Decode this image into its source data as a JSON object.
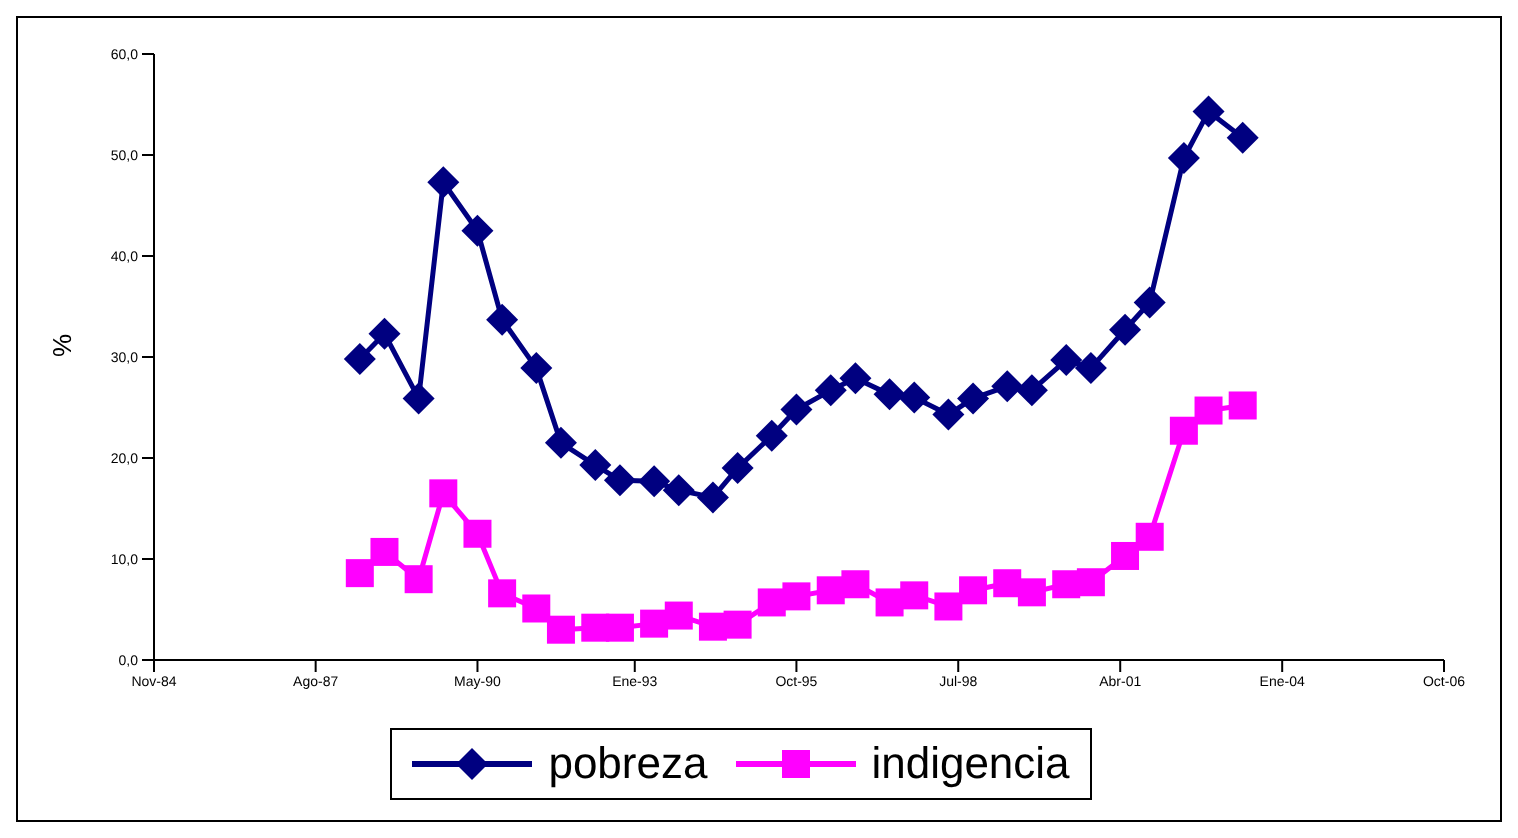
{
  "chart_data": {
    "type": "line",
    "ylabel": "%",
    "x": [
      "1988-05",
      "1988-10",
      "1989-05",
      "1989-10",
      "1990-05",
      "1990-10",
      "1991-05",
      "1991-10",
      "1992-05",
      "1992-10",
      "1993-05",
      "1993-10",
      "1994-05",
      "1994-10",
      "1995-05",
      "1995-10",
      "1996-05",
      "1996-10",
      "1997-05",
      "1997-10",
      "1998-05",
      "1998-10",
      "1999-05",
      "1999-10",
      "2000-05",
      "2000-10",
      "2001-05",
      "2001-10",
      "2002-05",
      "2002-10",
      "2003-05"
    ],
    "series": [
      {
        "name": "pobreza",
        "color": "#000080",
        "marker": "diamond",
        "values": [
          29.8,
          32.3,
          25.9,
          47.3,
          42.5,
          33.7,
          28.9,
          21.5,
          19.3,
          17.8,
          17.7,
          16.8,
          16.1,
          19.0,
          22.2,
          24.8,
          26.7,
          27.9,
          26.3,
          26.0,
          24.3,
          25.9,
          27.1,
          26.7,
          29.7,
          28.9,
          32.7,
          35.4,
          49.7,
          54.3,
          51.7
        ]
      },
      {
        "name": "indigencia",
        "color": "#ff00ff",
        "marker": "square",
        "values": [
          8.6,
          10.7,
          8.0,
          16.5,
          12.5,
          6.6,
          5.1,
          3.0,
          3.2,
          3.2,
          3.6,
          4.4,
          3.3,
          3.5,
          5.7,
          6.3,
          6.9,
          7.5,
          5.7,
          6.4,
          5.3,
          6.9,
          7.6,
          6.7,
          7.5,
          7.7,
          10.3,
          12.2,
          22.7,
          24.7,
          25.2
        ]
      }
    ],
    "xlim": [
      "1984-11",
      "2006-10"
    ],
    "xticks": [
      {
        "value": "1984-11",
        "label": "Nov-84"
      },
      {
        "value": "1987-08",
        "label": "Ago-87"
      },
      {
        "value": "1990-05",
        "label": "May-90"
      },
      {
        "value": "1993-01",
        "label": "Ene-93"
      },
      {
        "value": "1995-10",
        "label": "Oct-95"
      },
      {
        "value": "1998-07",
        "label": "Jul-98"
      },
      {
        "value": "2001-04",
        "label": "Abr-01"
      },
      {
        "value": "2004-01",
        "label": "Ene-04"
      },
      {
        "value": "2006-10",
        "label": "Oct-06"
      }
    ],
    "ylim": [
      0,
      60
    ],
    "yticks": [
      {
        "value": 0,
        "label": "0,0"
      },
      {
        "value": 10,
        "label": "10,0"
      },
      {
        "value": 20,
        "label": "20,0"
      },
      {
        "value": 30,
        "label": "30,0"
      },
      {
        "value": 40,
        "label": "40,0"
      },
      {
        "value": 50,
        "label": "50,0"
      },
      {
        "value": 60,
        "label": "60,0"
      }
    ],
    "grid": false,
    "legend": "bottom",
    "line_style": "solid"
  }
}
